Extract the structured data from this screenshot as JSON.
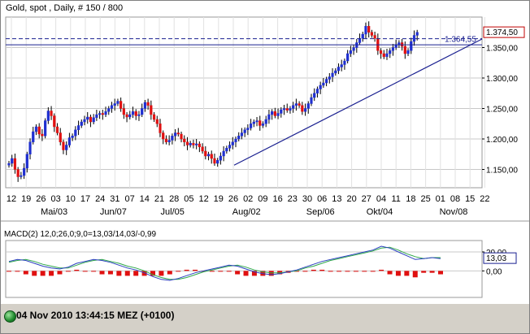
{
  "header": {
    "title": "Gold, spot , Daily, # 150 / 800"
  },
  "price_panel": {
    "ylim": [
      1120,
      1400
    ],
    "ticks": [
      "1.350,00",
      "1.300,00",
      "1.250,00",
      "1.200,00",
      "1.150,00"
    ],
    "tick_values": [
      1350,
      1300,
      1250,
      1200,
      1150
    ],
    "last_price_label": "1.374,50",
    "last_price_value": 1374.5,
    "crosshair_label": "1.364,55",
    "crosshair_value": 1364.55,
    "trendline": {
      "from": [
        34,
        1157
      ],
      "to": [
        150,
        1364
      ]
    }
  },
  "x_axis": {
    "days": [
      "12",
      "19",
      "26",
      "03",
      "10",
      "17",
      "24",
      "31",
      "07",
      "14",
      "21",
      "28",
      "05",
      "12",
      "19",
      "26",
      "02",
      "09",
      "16",
      "23",
      "30",
      "06",
      "13",
      "20",
      "27",
      "04",
      "11",
      "18",
      "25",
      "01",
      "08",
      "15",
      "22"
    ],
    "months": [
      {
        "label": "Mai/03",
        "index": 3
      },
      {
        "label": "Jun/07",
        "index": 7
      },
      {
        "label": "Jul/05",
        "index": 11
      },
      {
        "label": "Aug/02",
        "index": 16
      },
      {
        "label": "Sep/06",
        "index": 21
      },
      {
        "label": "Okt/04",
        "index": 25
      },
      {
        "label": "Nov/08",
        "index": 30
      }
    ]
  },
  "macd_panel": {
    "label": "MACD(2) 12,0;26,0;9,0=13,03/14,03/-0,99",
    "ylim": [
      -28,
      32
    ],
    "ticks": [
      "20,00",
      "0,00"
    ],
    "tick_values": [
      20,
      0
    ],
    "value_label": "13,03",
    "value": 13.03
  },
  "colors": {
    "up": "#1f2fd0",
    "down": "#e01010",
    "macd_line": "#2a3fbf",
    "signal_line": "#2fa84a",
    "histogram": "#e01010",
    "grid": "#c8c8c8",
    "crosshair": "#1a2090"
  },
  "status": {
    "text": "04 Nov 2010 13:44:15  MEZ (+0100)"
  },
  "chart_data": {
    "type": "candlestick",
    "title": "Gold, spot , Daily, # 150 / 800",
    "series": [
      {
        "name": "price",
        "type": "candlestick",
        "note": "close values, approx, ~150 trading days May 2010 - Nov 2010",
        "close": [
          1160,
          1168,
          1150,
          1138,
          1140,
          1152,
          1175,
          1195,
          1212,
          1220,
          1208,
          1205,
          1230,
          1246,
          1238,
          1220,
          1210,
          1195,
          1182,
          1190,
          1202,
          1205,
          1215,
          1222,
          1228,
          1232,
          1236,
          1228,
          1235,
          1240,
          1242,
          1240,
          1245,
          1250,
          1255,
          1258,
          1262,
          1250,
          1240,
          1236,
          1240,
          1245,
          1238,
          1240,
          1250,
          1260,
          1255,
          1240,
          1232,
          1225,
          1210,
          1200,
          1195,
          1198,
          1205,
          1210,
          1208,
          1200,
          1195,
          1190,
          1193,
          1190,
          1192,
          1187,
          1180,
          1172,
          1175,
          1168,
          1160,
          1165,
          1172,
          1180,
          1185,
          1190,
          1195,
          1200,
          1205,
          1210,
          1215,
          1218,
          1225,
          1228,
          1230,
          1222,
          1225,
          1232,
          1240,
          1245,
          1238,
          1242,
          1248,
          1250,
          1247,
          1250,
          1255,
          1258,
          1255,
          1245,
          1250,
          1258,
          1268,
          1275,
          1282,
          1288,
          1292,
          1298,
          1302,
          1308,
          1312,
          1318,
          1322,
          1328,
          1340,
          1345,
          1350,
          1358,
          1365,
          1372,
          1385,
          1375,
          1370,
          1365,
          1345,
          1340,
          1335,
          1340,
          1345,
          1350,
          1355,
          1358,
          1352,
          1340,
          1345,
          1360,
          1370,
          1375
        ]
      },
      {
        "name": "MACD",
        "type": "line",
        "note": "approx values aligned to the last part of the price series",
        "values": [
          10,
          12,
          11,
          8,
          5,
          3,
          2,
          4,
          8,
          10,
          12,
          11,
          9,
          6,
          3,
          1,
          -2,
          -6,
          -9,
          -10,
          -8,
          -5,
          -2,
          0,
          2,
          4,
          6,
          5,
          2,
          -1,
          -3,
          -4,
          -3,
          -1,
          1,
          4,
          7,
          10,
          12,
          14,
          16,
          18,
          20,
          22,
          26,
          24,
          20,
          16,
          12,
          13,
          14,
          13
        ]
      },
      {
        "name": "Signal",
        "type": "line",
        "values": [
          9,
          11,
          12,
          10,
          7,
          5,
          3,
          3,
          6,
          9,
          11,
          12,
          10,
          8,
          5,
          3,
          0,
          -4,
          -7,
          -9,
          -9,
          -7,
          -4,
          -1,
          1,
          3,
          5,
          6,
          4,
          1,
          -1,
          -2,
          -2,
          -1,
          0,
          3,
          5,
          8,
          11,
          13,
          15,
          17,
          19,
          21,
          24,
          25,
          22,
          18,
          15,
          13,
          14,
          14
        ]
      }
    ]
  }
}
